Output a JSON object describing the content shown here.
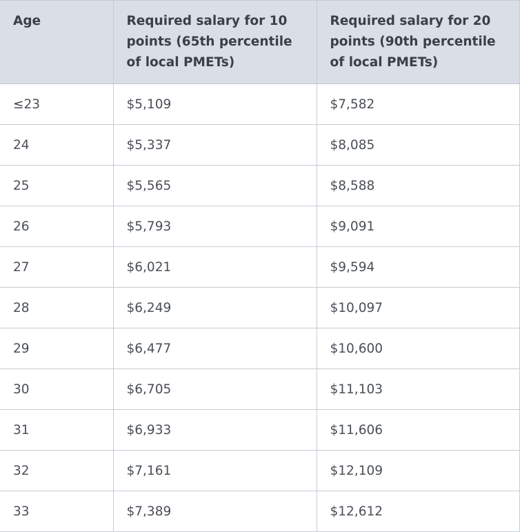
{
  "table": {
    "headers": [
      "Age",
      "Required salary for 10 points (65th percentile of local PMETs)",
      "Required salary for 20 points (90th percentile of local PMETs)"
    ],
    "rows": [
      [
        "≤23",
        "$5,109",
        "$7,582"
      ],
      [
        "24",
        "$5,337",
        "$8,085"
      ],
      [
        "25",
        "$5,565",
        "$8,588"
      ],
      [
        "26",
        "$5,793",
        "$9,091"
      ],
      [
        "27",
        "$6,021",
        "$9,594"
      ],
      [
        "28",
        "$6,249",
        "$10,097"
      ],
      [
        "29",
        "$6,477",
        "$10,600"
      ],
      [
        "30",
        "$6,705",
        "$11,103"
      ],
      [
        "31",
        "$6,933",
        "$11,606"
      ],
      [
        "32",
        "$7,161",
        "$12,109"
      ],
      [
        "33",
        "$7,389",
        "$12,612"
      ]
    ]
  },
  "colors": {
    "header_background": "#d9dee7",
    "border": "#c5ccd6",
    "text": "#4a4f57"
  }
}
